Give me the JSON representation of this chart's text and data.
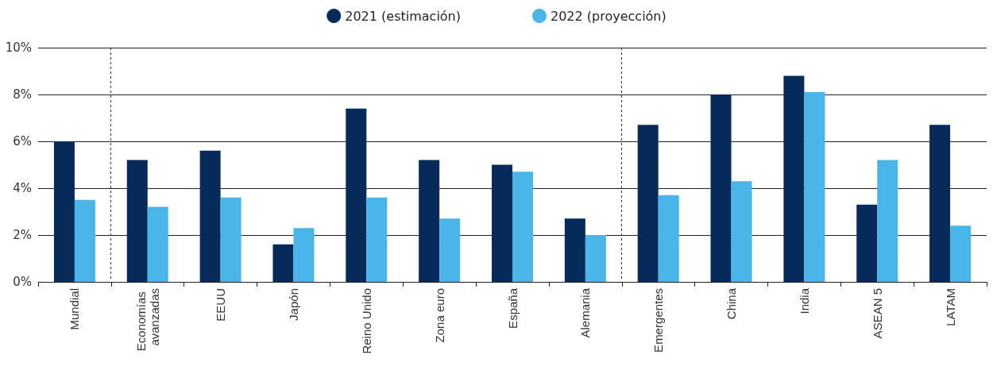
{
  "chart_data": {
    "type": "bar",
    "categories": [
      "Mundial",
      "Economías avanzadas",
      "EEUU",
      "Japón",
      "Reino Unido",
      "Zona euro",
      "España",
      "Alemania",
      "Emergentes",
      "China",
      "India",
      "ASEAN 5",
      "LATAM"
    ],
    "series": [
      {
        "name": "2021 (estimación)",
        "color": "#062a5a",
        "values": [
          6.0,
          5.2,
          5.6,
          1.6,
          7.4,
          5.2,
          5.0,
          2.7,
          6.7,
          8.0,
          8.8,
          3.3,
          6.7
        ]
      },
      {
        "name": "2022 (proyección)",
        "color": "#4ab5e8",
        "values": [
          3.5,
          3.2,
          3.6,
          2.3,
          3.6,
          2.7,
          4.7,
          2.0,
          3.7,
          4.3,
          8.1,
          5.2,
          2.4
        ]
      }
    ],
    "ylim": [
      0,
      10
    ],
    "yticks": [
      {
        "value": 0,
        "label": "0%"
      },
      {
        "value": 2,
        "label": "2%"
      },
      {
        "value": 4,
        "label": "4%"
      },
      {
        "value": 6,
        "label": "6%"
      },
      {
        "value": 8,
        "label": "8%"
      },
      {
        "value": 10,
        "label": "10%"
      }
    ],
    "grid": "y",
    "legend": "top"
  }
}
